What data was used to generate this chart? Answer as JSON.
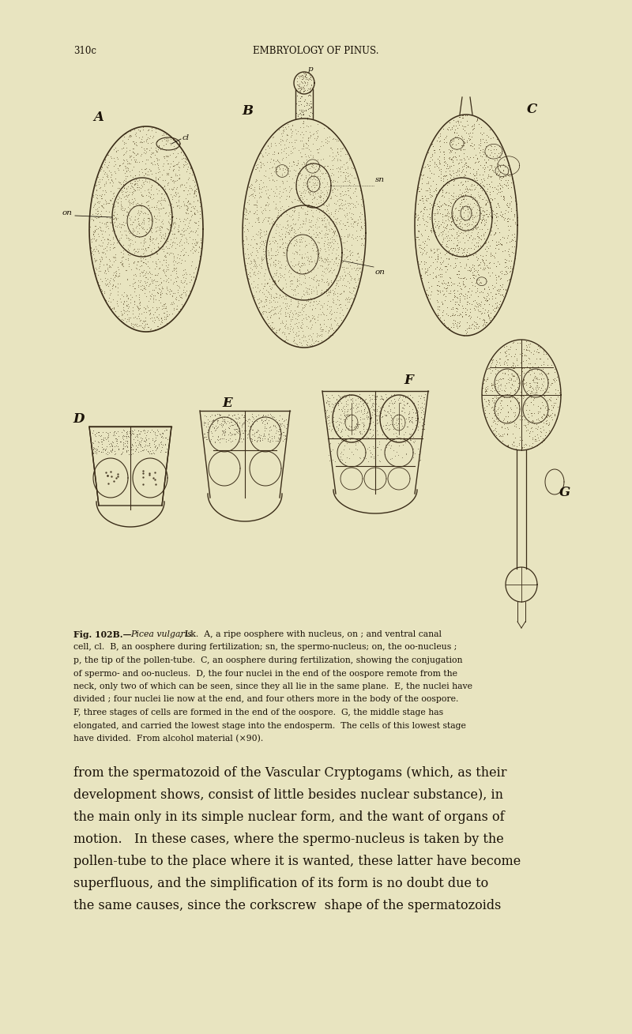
{
  "bg_color": "#e8e4c0",
  "page_width": 8.0,
  "page_height": 13.09,
  "header_left": "310c",
  "header_center": "EMBRYOLOGY OF PINUS.",
  "fig_A_label": "A",
  "fig_B_label": "B",
  "fig_C_label": "C",
  "fig_D_label": "D",
  "fig_E_label": "E",
  "fig_F_label": "F",
  "fig_G_label": "G",
  "text_color": "#1a1208",
  "draw_color": "#3a2c18",
  "caption_lines": [
    [
      "bold",
      "Fig. 102B.—",
      "italic",
      "Picea vulgaris",
      "normal",
      ", Lk.  A, a ripe oosphere with nucleus, on ; and ventral canal"
    ],
    [
      "normal",
      "cell, cl.  B, an oosphere during fertilization; sn, the spermo-nucleus; on, the oo-nucleus ;"
    ],
    [
      "normal",
      "p, the tip of the pollen-tube.  C, an oosphere during fertilization, showing the conjugation"
    ],
    [
      "normal",
      "of spermo- and oo-nucleus.  D, the four nuclei in the end of the oospore remote from the"
    ],
    [
      "normal",
      "neck, only two of which can be seen, since they all lie in the same plane.  E, the nuclei have"
    ],
    [
      "normal",
      "divided ; four nuclei lie now at the end, and four others more in the body of the oospore."
    ],
    [
      "normal",
      "F, three stages of cells are formed in the end of the oospore.  G, the middle stage has"
    ],
    [
      "normal",
      "elongated, and carried the lowest stage into the endosperm.  The cells of this lowest stage"
    ],
    [
      "normal",
      "have divided.  From alcohol material (×90)."
    ]
  ],
  "body_lines": [
    "from the spermatozoid of the Vascular Cryptogams (which, as their",
    "development shows, consist of little besides nuclear substance), in",
    "the main only in its simple nuclear form, and the want of organs of",
    "motion.   In these cases, where the spermo-nucleus is taken by the",
    "pollen-tube to the place where it is wanted, these latter have become",
    "superfluous, and the simplification of its form is no doubt due to",
    "the same causes, since the corkscrew  shape of the spermatozoids"
  ]
}
